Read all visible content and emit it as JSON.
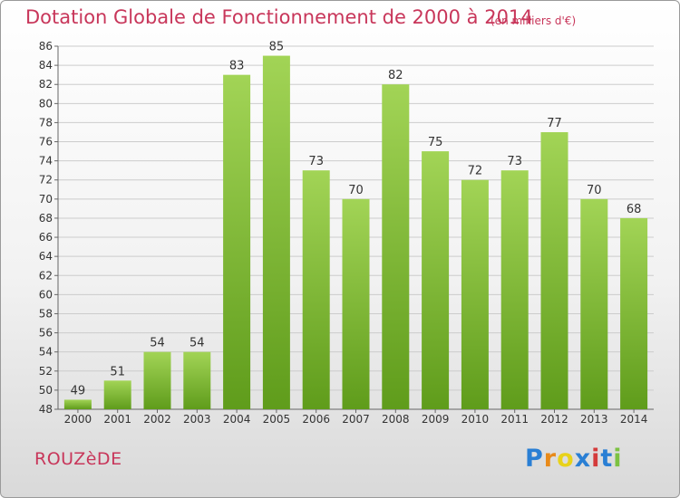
{
  "title": "Dotation Globale de Fonctionnement de 2000 à 2014",
  "subtitle": "(en milliers d'€)",
  "commune": "ROUZèDE",
  "logo": {
    "letters": [
      "P",
      "r",
      "o",
      "x",
      "i",
      "t",
      "i"
    ],
    "colors": [
      "#2a7fd4",
      "#e88a1a",
      "#e8d21a",
      "#2a7fd4",
      "#d43b3b",
      "#2a7fd4",
      "#7cc242"
    ]
  },
  "colors": {
    "bar_light": "#a2d456",
    "bar_dark": "#5f9c1b",
    "grid": "#cccccc",
    "accent": "#c8365a"
  },
  "chart_data": {
    "type": "bar",
    "categories": [
      "2000",
      "2001",
      "2002",
      "2003",
      "2004",
      "2005",
      "2006",
      "2007",
      "2008",
      "2009",
      "2010",
      "2011",
      "2012",
      "2013",
      "2014"
    ],
    "values": [
      49,
      51,
      54,
      54,
      83,
      85,
      73,
      70,
      82,
      75,
      72,
      73,
      77,
      70,
      68
    ],
    "ylim": [
      48,
      86
    ],
    "ytick_step": 2,
    "grid": true,
    "xlabel": "",
    "ylabel": ""
  }
}
